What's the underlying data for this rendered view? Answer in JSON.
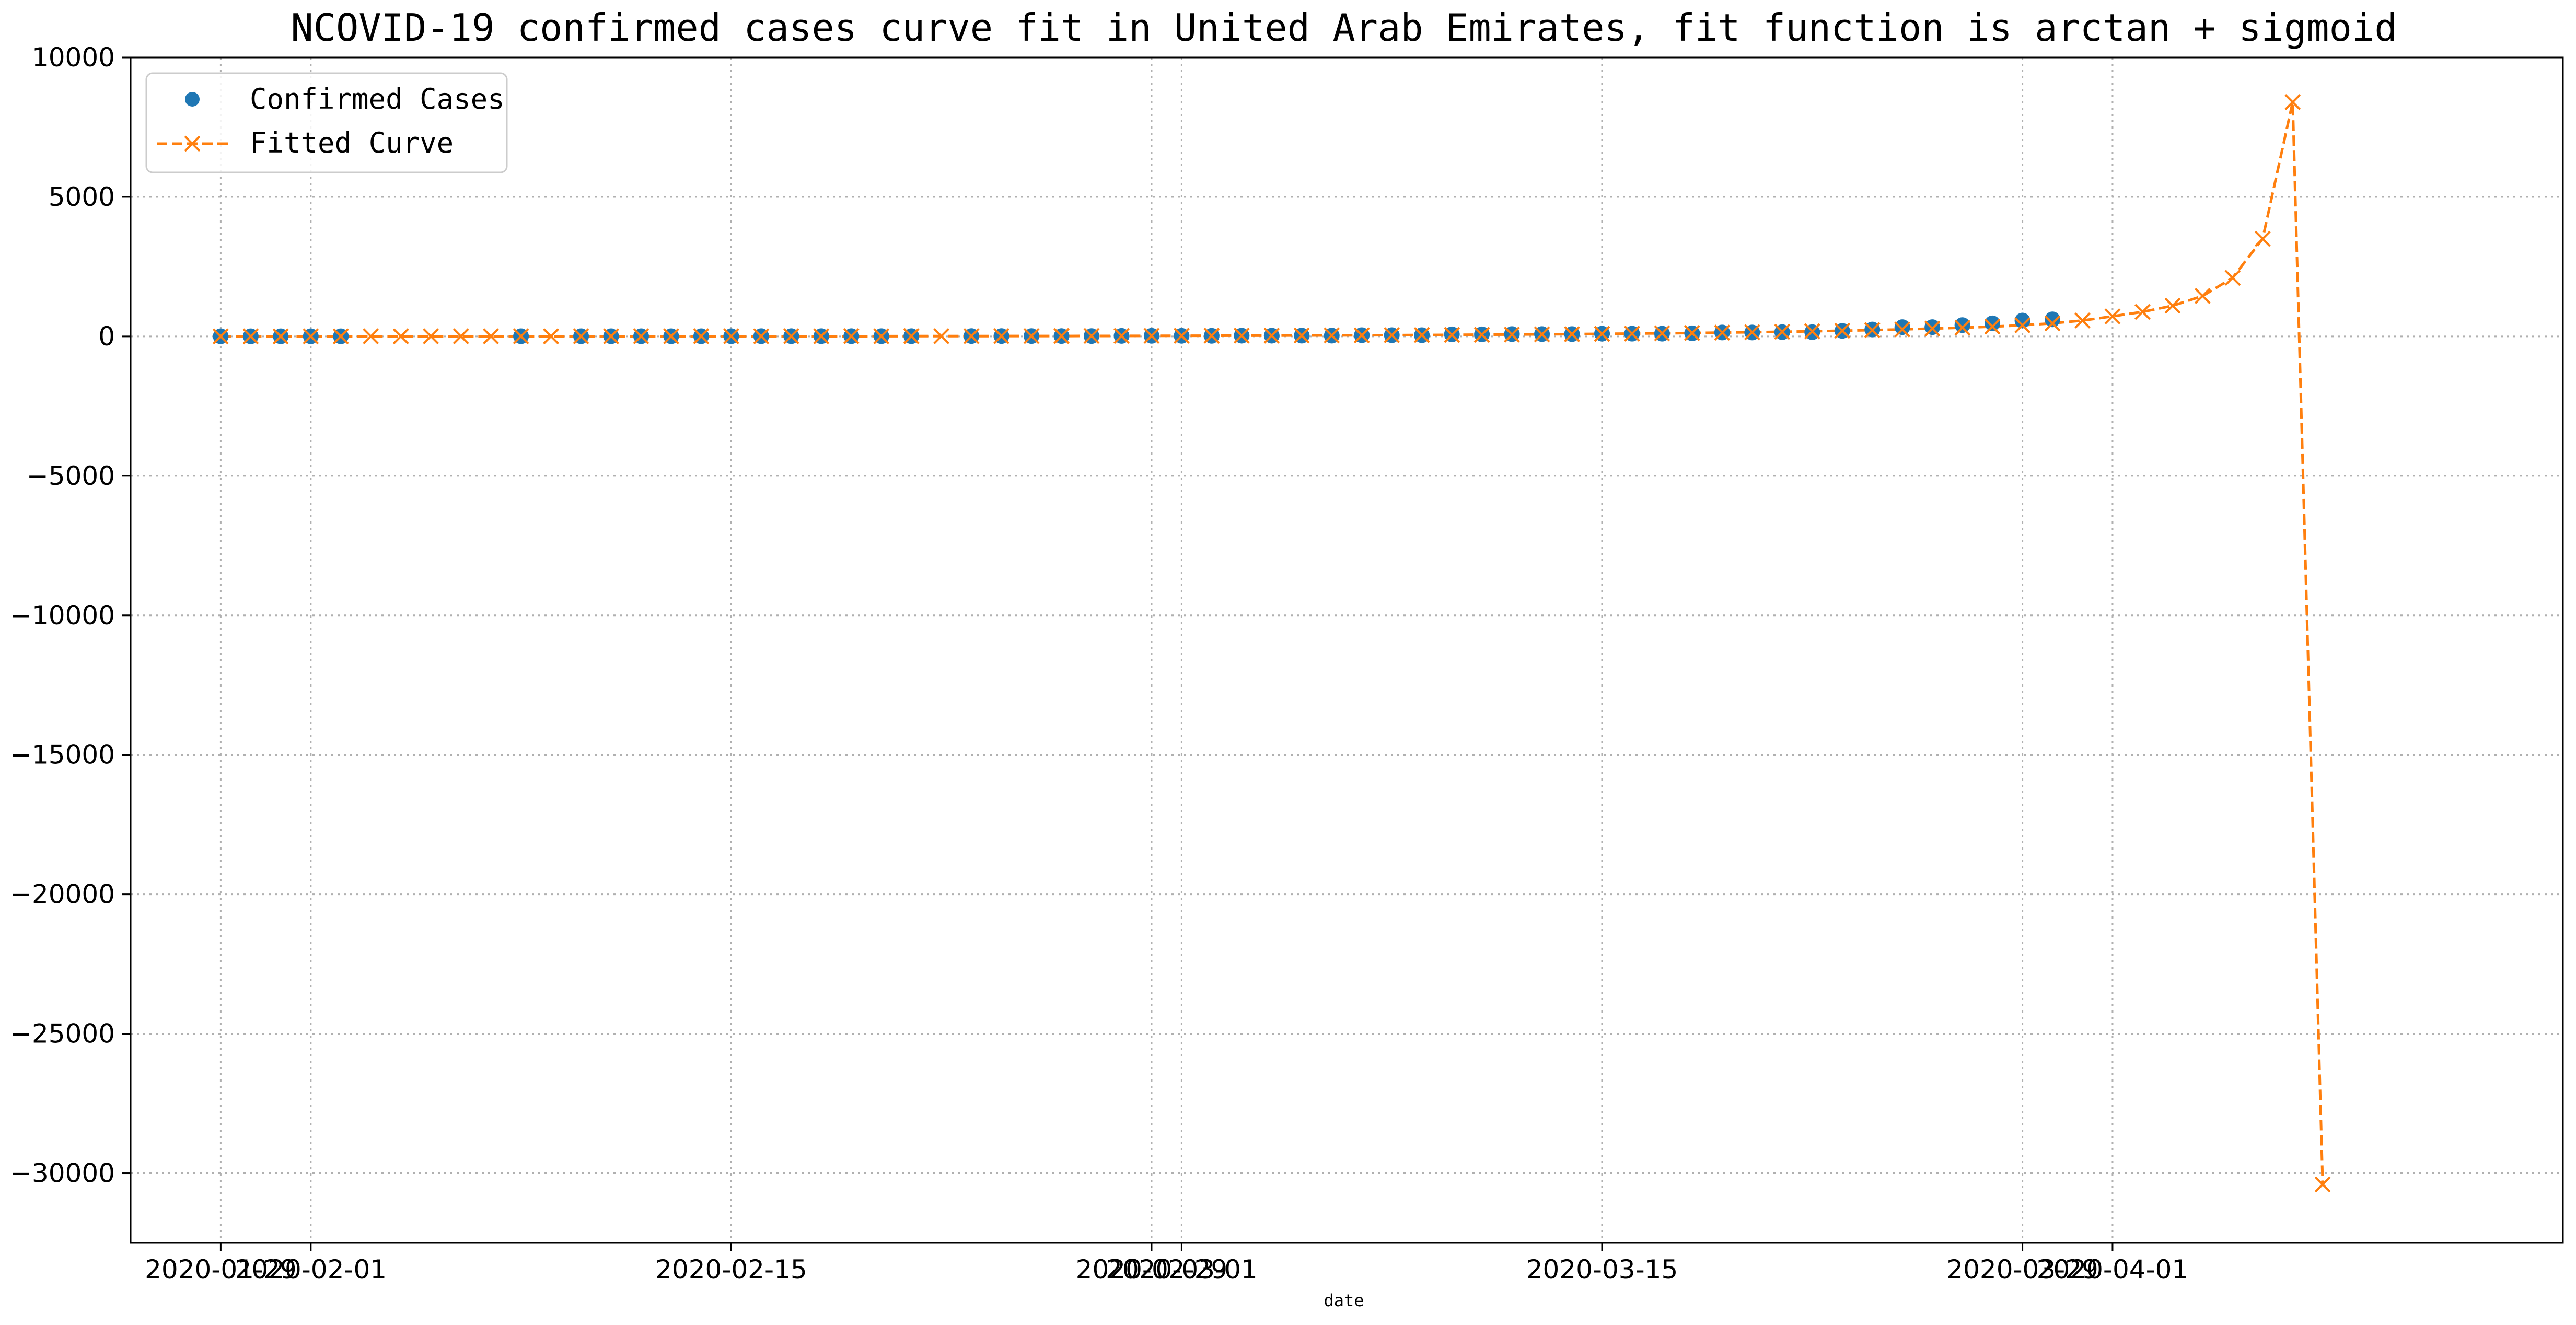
{
  "chart_data": {
    "type": "line",
    "title": "NCOVID-19 confirmed cases curve fit in United Arab Emirates, fit function is arctan + sigmoid",
    "xlabel": "date",
    "ylabel": "",
    "ylim": [
      -32500,
      10000
    ],
    "xlim": [
      "2020-01-26",
      "2020-04-16"
    ],
    "grid": true,
    "legend_position": "top-left",
    "y_ticks": [
      10000,
      5000,
      0,
      -5000,
      -10000,
      -15000,
      -20000,
      -25000,
      -30000
    ],
    "y_tick_labels": [
      "10000",
      "5000",
      "0",
      "−5000",
      "−10000",
      "−15000",
      "−20000",
      "−25000",
      "−30000"
    ],
    "x_ticks": [
      {
        "date": "2020-01-29",
        "label": "2020-01-29"
      },
      {
        "date": "2020-02-01",
        "label": "2020-02-01"
      },
      {
        "date": "2020-02-15",
        "label": "2020-02-15"
      },
      {
        "date": "2020-02-29",
        "label": "2020-02-29"
      },
      {
        "date": "2020-03-01",
        "label": "2020-03-01"
      },
      {
        "date": "2020-03-15",
        "label": "2020-03-15"
      },
      {
        "date": "2020-03-29",
        "label": "2020-03-29"
      },
      {
        "date": "2020-04-01",
        "label": "2020-04-01"
      }
    ],
    "series": [
      {
        "name": "Confirmed Cases",
        "color": "#1f77b4",
        "marker": "circle",
        "line": "none",
        "points": [
          [
            "2020-01-29",
            4
          ],
          [
            "2020-01-30",
            4
          ],
          [
            "2020-01-31",
            4
          ],
          [
            "2020-02-01",
            4
          ],
          [
            "2020-02-02",
            5
          ],
          [
            "2020-02-08",
            7
          ],
          [
            "2020-02-10",
            8
          ],
          [
            "2020-02-11",
            8
          ],
          [
            "2020-02-12",
            8
          ],
          [
            "2020-02-13",
            8
          ],
          [
            "2020-02-14",
            8
          ],
          [
            "2020-02-15",
            8
          ],
          [
            "2020-02-16",
            9
          ],
          [
            "2020-02-17",
            9
          ],
          [
            "2020-02-18",
            9
          ],
          [
            "2020-02-19",
            9
          ],
          [
            "2020-02-20",
            9
          ],
          [
            "2020-02-21",
            9
          ],
          [
            "2020-02-23",
            13
          ],
          [
            "2020-02-24",
            13
          ],
          [
            "2020-02-25",
            13
          ],
          [
            "2020-02-26",
            13
          ],
          [
            "2020-02-27",
            13
          ],
          [
            "2020-02-28",
            19
          ],
          [
            "2020-02-29",
            21
          ],
          [
            "2020-03-01",
            21
          ],
          [
            "2020-03-02",
            21
          ],
          [
            "2020-03-03",
            27
          ],
          [
            "2020-03-04",
            27
          ],
          [
            "2020-03-05",
            29
          ],
          [
            "2020-03-06",
            29
          ],
          [
            "2020-03-07",
            45
          ],
          [
            "2020-03-08",
            45
          ],
          [
            "2020-03-09",
            45
          ],
          [
            "2020-03-10",
            74
          ],
          [
            "2020-03-11",
            74
          ],
          [
            "2020-03-12",
            85
          ],
          [
            "2020-03-13",
            85
          ],
          [
            "2020-03-14",
            85
          ],
          [
            "2020-03-15",
            98
          ],
          [
            "2020-03-16",
            98
          ],
          [
            "2020-03-17",
            98
          ],
          [
            "2020-03-18",
            113
          ],
          [
            "2020-03-19",
            140
          ],
          [
            "2020-03-20",
            140
          ],
          [
            "2020-03-21",
            153
          ],
          [
            "2020-03-22",
            153
          ],
          [
            "2020-03-23",
            198
          ],
          [
            "2020-03-24",
            248
          ],
          [
            "2020-03-25",
            333
          ],
          [
            "2020-03-26",
            333
          ],
          [
            "2020-03-27",
            405
          ],
          [
            "2020-03-28",
            468
          ],
          [
            "2020-03-29",
            570
          ],
          [
            "2020-03-30",
            611
          ]
        ]
      },
      {
        "name": "Fitted Curve",
        "color": "#ff7f0e",
        "marker": "x",
        "line": "dashed",
        "points": [
          [
            "2020-01-29",
            2
          ],
          [
            "2020-01-30",
            2
          ],
          [
            "2020-01-31",
            2
          ],
          [
            "2020-02-01",
            2
          ],
          [
            "2020-02-02",
            3
          ],
          [
            "2020-02-03",
            3
          ],
          [
            "2020-02-04",
            3
          ],
          [
            "2020-02-05",
            3
          ],
          [
            "2020-02-06",
            3
          ],
          [
            "2020-02-07",
            4
          ],
          [
            "2020-02-08",
            4
          ],
          [
            "2020-02-09",
            4
          ],
          [
            "2020-02-10",
            4
          ],
          [
            "2020-02-11",
            5
          ],
          [
            "2020-02-12",
            5
          ],
          [
            "2020-02-13",
            5
          ],
          [
            "2020-02-14",
            6
          ],
          [
            "2020-02-15",
            6
          ],
          [
            "2020-02-16",
            7
          ],
          [
            "2020-02-17",
            7
          ],
          [
            "2020-02-18",
            8
          ],
          [
            "2020-02-19",
            8
          ],
          [
            "2020-02-20",
            9
          ],
          [
            "2020-02-21",
            10
          ],
          [
            "2020-02-22",
            11
          ],
          [
            "2020-02-23",
            12
          ],
          [
            "2020-02-24",
            13
          ],
          [
            "2020-02-25",
            14
          ],
          [
            "2020-02-26",
            15
          ],
          [
            "2020-02-27",
            17
          ],
          [
            "2020-02-28",
            19
          ],
          [
            "2020-02-29",
            20
          ],
          [
            "2020-03-01",
            22
          ],
          [
            "2020-03-02",
            25
          ],
          [
            "2020-03-03",
            27
          ],
          [
            "2020-03-04",
            30
          ],
          [
            "2020-03-05",
            33
          ],
          [
            "2020-03-06",
            37
          ],
          [
            "2020-03-07",
            41
          ],
          [
            "2020-03-08",
            45
          ],
          [
            "2020-03-09",
            50
          ],
          [
            "2020-03-10",
            55
          ],
          [
            "2020-03-11",
            61
          ],
          [
            "2020-03-12",
            67
          ],
          [
            "2020-03-13",
            74
          ],
          [
            "2020-03-14",
            82
          ],
          [
            "2020-03-15",
            91
          ],
          [
            "2020-03-16",
            100
          ],
          [
            "2020-03-17",
            111
          ],
          [
            "2020-03-18",
            123
          ],
          [
            "2020-03-19",
            136
          ],
          [
            "2020-03-20",
            150
          ],
          [
            "2020-03-21",
            166
          ],
          [
            "2020-03-22",
            184
          ],
          [
            "2020-03-23",
            204
          ],
          [
            "2020-03-24",
            226
          ],
          [
            "2020-03-25",
            251
          ],
          [
            "2020-03-26",
            280
          ],
          [
            "2020-03-27",
            313
          ],
          [
            "2020-03-28",
            352
          ],
          [
            "2020-03-29",
            400
          ],
          [
            "2020-03-30",
            470
          ],
          [
            "2020-03-31",
            570
          ],
          [
            "2020-04-01",
            720
          ],
          [
            "2020-04-02",
            880
          ],
          [
            "2020-04-03",
            1100
          ],
          [
            "2020-04-04",
            1450
          ],
          [
            "2020-04-05",
            2100
          ],
          [
            "2020-04-06",
            3500
          ],
          [
            "2020-04-07",
            8400
          ],
          [
            "2020-04-08",
            -30400
          ]
        ]
      }
    ]
  }
}
